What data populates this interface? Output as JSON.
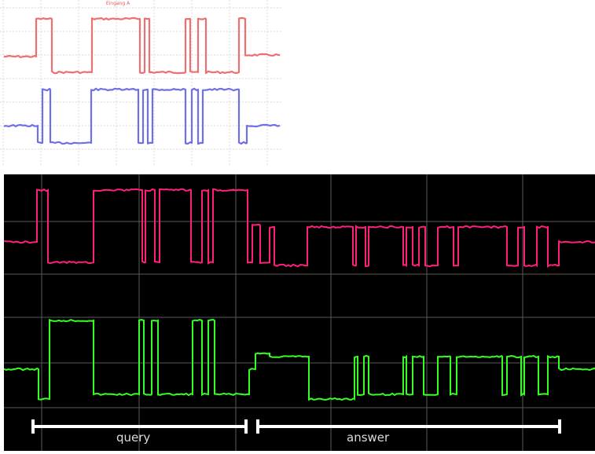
{
  "top_panel": {
    "title": "Eingang A",
    "background": "#ffffff",
    "grid_color": "#d9d9d9",
    "channel_a_color": "#ee6f6f",
    "channel_b_color": "#6f6fe8"
  },
  "bottom_panel": {
    "background": "#000000",
    "grid_color": "#5a5a5a",
    "channel_a_color": "#ff1f7a",
    "channel_b_color": "#33ff22"
  },
  "annotations": {
    "query_label": "query",
    "answer_label": "answer",
    "bracket_color": "#ffffff"
  }
}
